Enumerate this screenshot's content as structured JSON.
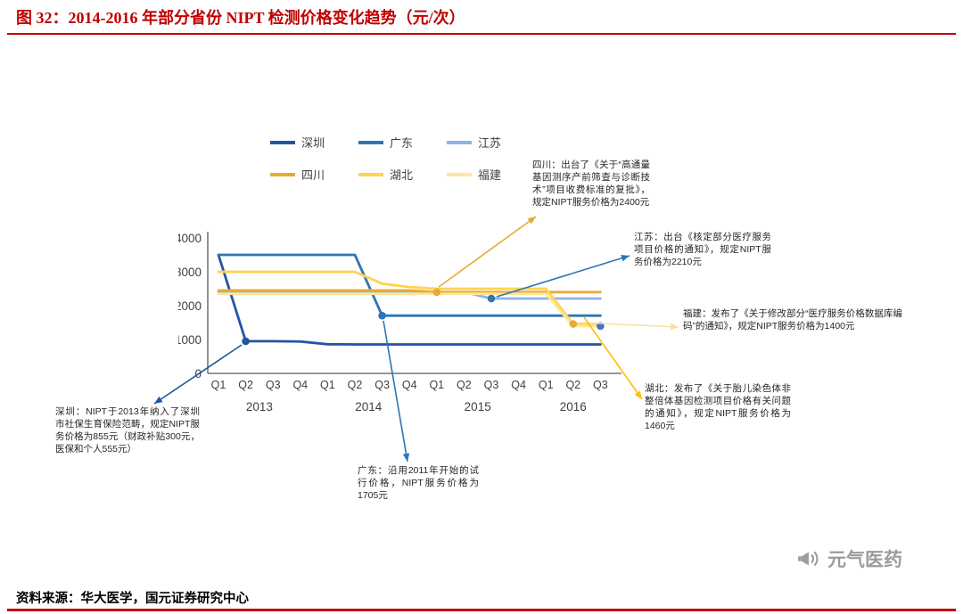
{
  "title": "图 32：2014-2016 年部分省份 NIPT 检测价格变化趋势（元/次）",
  "source": "资料来源：华大医学，国元证券研究中心",
  "watermark": "元气医药",
  "theme": {
    "accent_red": "#C00000",
    "axis_text": "#404040",
    "annotation_text": "#262626",
    "watermark_gray": "#9C9C9C"
  },
  "chart_data": {
    "type": "line",
    "x_quarters": [
      "Q1",
      "Q2",
      "Q3",
      "Q4",
      "Q1",
      "Q2",
      "Q3",
      "Q4",
      "Q1",
      "Q2",
      "Q3",
      "Q4",
      "Q1",
      "Q2",
      "Q3"
    ],
    "year_labels": [
      "2013",
      "2014",
      "2015",
      "2016"
    ],
    "xlabel": "",
    "ylabel": "",
    "ylim": [
      0,
      4000
    ],
    "yticks": [
      0,
      1000,
      2000,
      3000,
      4000
    ],
    "grid": false,
    "legend_position": "top",
    "series": [
      {
        "name": "深圳",
        "color": "#2155A3",
        "arrow_color": "#2155A3",
        "marker_index": 1,
        "values": [
          3500,
          950,
          950,
          940,
          860,
          855,
          855,
          855,
          855,
          855,
          855,
          855,
          855,
          855,
          855
        ]
      },
      {
        "name": "广东",
        "color": "#2E75B6",
        "arrow_color": "#2E75B6",
        "marker_index": 6,
        "values": [
          3500,
          3500,
          3500,
          3500,
          3500,
          3500,
          1705,
          1705,
          1705,
          1705,
          1705,
          1705,
          1705,
          1705,
          1705
        ]
      },
      {
        "name": "江苏",
        "color": "#8EB4E3",
        "arrow_color": "#2E75B6",
        "marker_color": "#2E75B6",
        "marker_index": 10,
        "values": [
          2400,
          2400,
          2400,
          2400,
          2400,
          2400,
          2400,
          2400,
          2400,
          2400,
          2210,
          2210,
          2210,
          2210,
          2210
        ]
      },
      {
        "name": "四川",
        "color": "#EAA935",
        "arrow_color": "#EAA935",
        "marker_index": 8,
        "values": [
          2450,
          2450,
          2450,
          2450,
          2450,
          2450,
          2450,
          2450,
          2400,
          2400,
          2400,
          2400,
          2400,
          2400,
          2400
        ]
      },
      {
        "name": "湖北",
        "color": "#FFD34D",
        "arrow_color": "#FFC000",
        "marker_color": "#EAA935",
        "marker_index": 13,
        "values": [
          3000,
          3000,
          3000,
          3000,
          3000,
          3000,
          2650,
          2550,
          2500,
          2500,
          2500,
          2500,
          2500,
          1460,
          1460
        ]
      },
      {
        "name": "福建",
        "color": "#FFE699",
        "arrow_color": "#F5DF9E",
        "marker_color": "#4472C4",
        "marker_index": 14,
        "values": [
          2350,
          2350,
          2350,
          2350,
          2350,
          2350,
          2350,
          2350,
          2350,
          2350,
          2350,
          2350,
          2350,
          1400,
          1400
        ]
      }
    ],
    "annotations": {
      "shenzhen": "深圳：NIPT于2013年纳入了深圳市社保生育保险范畴，规定NIPT服务价格为855元（财政补贴300元，医保和个人555元）",
      "guangdong": "广东：沿用2011年开始的试行价格，NIPT服务价格为1705元",
      "sichuan": "四川：出台了《关于“高通量基因测序产前筛查与诊断技术”项目收费标准的复批》，规定NIPT服务价格为2400元",
      "jiangsu": "江苏：出台《核定部分医疗服务项目价格的通知》，规定NIPT服务价格为2210元",
      "fujian": "福建：发布了《关于修改部分“医疗服务价格数据库编码”的通知》，规定NIPT服务价格为1400元",
      "hubei": "湖北：发布了《关于胎儿染色体非整倍体基因检测项目价格有关问题的通知》，规定NIPT服务价格为1460元"
    }
  }
}
